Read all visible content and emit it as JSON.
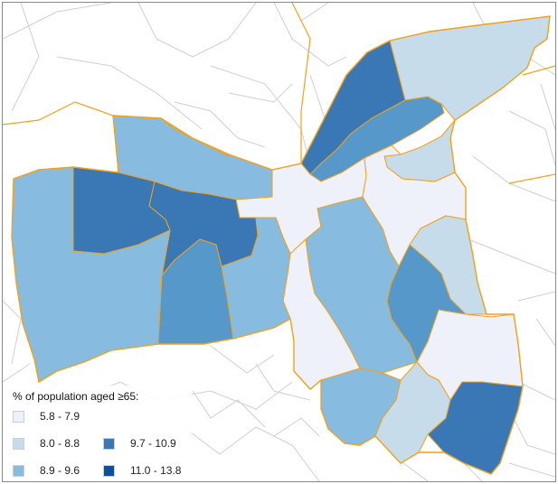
{
  "legend": {
    "title": "% of population aged ≥65:",
    "classes": [
      {
        "label": "5.8 - 7.9",
        "color": "#eef0fa"
      },
      {
        "label": "8.0 - 8.8",
        "color": "#c6dcea"
      },
      {
        "label": "8.9 - 9.6",
        "color": "#87bbdf"
      },
      {
        "label": "9.7 - 10.9",
        "color": "#3a78b5"
      },
      {
        "label": "11.0 - 13.8",
        "color": "#0d4f9b"
      }
    ]
  },
  "colors": {
    "boundary": "#f2a21a",
    "roads": "#cfcfcf",
    "mid_blue": "#5698c9",
    "frame": "#8a8a8a"
  }
}
